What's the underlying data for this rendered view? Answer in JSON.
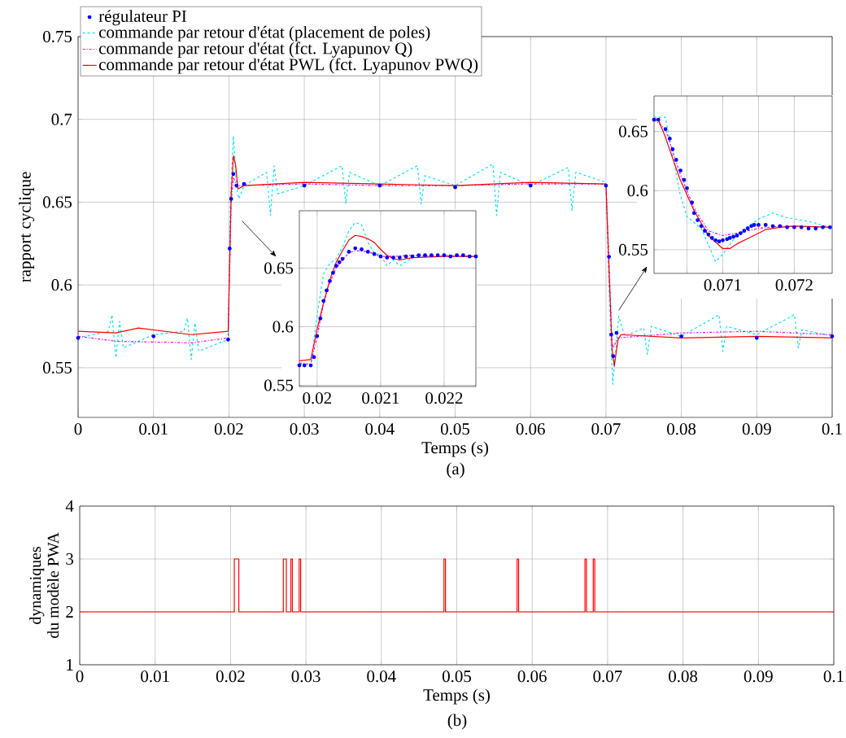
{
  "chart_data": [
    {
      "type": "line",
      "xlabel": "Temps (s)",
      "ylabel": "rapport cyclique",
      "annotations": [
        "(a)"
      ],
      "xlim": [
        0,
        0.1
      ],
      "ylim": [
        0.52,
        0.75
      ],
      "xticks": [
        0,
        0.01,
        0.02,
        0.03,
        0.04,
        0.05,
        0.06,
        0.07,
        0.08,
        0.09,
        0.1
      ],
      "yticks": [
        0.55,
        0.6,
        0.65,
        0.7,
        0.75
      ],
      "grid": true,
      "legend": "top left",
      "series": [
        {
          "name": "régulateur PI",
          "type": "scatter",
          "marker": "circle",
          "color": "#0000ff",
          "x": [
            0,
            0.01,
            0.0199,
            0.0201,
            0.0203,
            0.0206,
            0.021,
            0.022,
            0.03,
            0.04,
            0.05,
            0.06,
            0.07,
            0.0704,
            0.0707,
            0.07095,
            0.0714,
            0.08,
            0.09,
            0.1
          ],
          "values": [
            0.568,
            0.569,
            0.567,
            0.622,
            0.652,
            0.667,
            0.66,
            0.661,
            0.66,
            0.66,
            0.659,
            0.66,
            0.66,
            0.617,
            0.57,
            0.557,
            0.571,
            0.569,
            0.568,
            0.569
          ]
        },
        {
          "name": "commande par retour d'état (placement de poles)",
          "type": "line",
          "marker": "none",
          "line_style": "dashed",
          "color": "#00e5ee",
          "x": [
            0,
            0.004,
            0.0045,
            0.005,
            0.0055,
            0.006,
            0.01,
            0.014,
            0.0145,
            0.015,
            0.0155,
            0.016,
            0.0199,
            0.0202,
            0.0206,
            0.021,
            0.0213,
            0.022,
            0.025,
            0.0255,
            0.026,
            0.0265,
            0.03,
            0.035,
            0.0355,
            0.036,
            0.04,
            0.045,
            0.0455,
            0.046,
            0.05,
            0.055,
            0.0555,
            0.056,
            0.06,
            0.065,
            0.0655,
            0.066,
            0.07,
            0.0704,
            0.0709,
            0.0717,
            0.0725,
            0.075,
            0.0755,
            0.076,
            0.08,
            0.085,
            0.0855,
            0.086,
            0.09,
            0.095,
            0.0955,
            0.096,
            0.1
          ],
          "values": [
            0.568,
            0.572,
            0.582,
            0.556,
            0.578,
            0.562,
            0.57,
            0.572,
            0.58,
            0.555,
            0.577,
            0.56,
            0.567,
            0.652,
            0.69,
            0.66,
            0.652,
            0.66,
            0.668,
            0.642,
            0.672,
            0.655,
            0.66,
            0.672,
            0.649,
            0.668,
            0.66,
            0.672,
            0.649,
            0.666,
            0.66,
            0.673,
            0.642,
            0.668,
            0.66,
            0.671,
            0.645,
            0.668,
            0.662,
            0.598,
            0.54,
            0.581,
            0.569,
            0.574,
            0.558,
            0.575,
            0.569,
            0.582,
            0.56,
            0.575,
            0.57,
            0.582,
            0.562,
            0.573,
            0.569
          ]
        },
        {
          "name": "commande par retour d'état (fct. Lyapunov Q)",
          "type": "line",
          "marker": "none",
          "line_style": "dashdot",
          "color": "#ff00ff",
          "x": [
            0,
            0.005,
            0.015,
            0.0199,
            0.0203,
            0.0206,
            0.021,
            0.03,
            0.04,
            0.05,
            0.06,
            0.07,
            0.0704,
            0.0708,
            0.071,
            0.0715,
            0.08,
            0.09,
            0.1
          ],
          "values": [
            0.569,
            0.566,
            0.565,
            0.568,
            0.65,
            0.665,
            0.66,
            0.661,
            0.66,
            0.66,
            0.661,
            0.661,
            0.615,
            0.566,
            0.562,
            0.568,
            0.571,
            0.572,
            0.57
          ]
        },
        {
          "name": "commande par retour d'état PWL (fct. Lyapunov PWQ)",
          "type": "line",
          "marker": "none",
          "line_style": "solid",
          "color": "#ff0000",
          "x": [
            0,
            0.005,
            0.008,
            0.015,
            0.0199,
            0.0203,
            0.0206,
            0.0209,
            0.0212,
            0.022,
            0.03,
            0.04,
            0.05,
            0.06,
            0.07,
            0.0704,
            0.0708,
            0.0711,
            0.0716,
            0.072,
            0.08,
            0.09,
            0.1
          ],
          "values": [
            0.572,
            0.571,
            0.574,
            0.57,
            0.572,
            0.655,
            0.678,
            0.672,
            0.658,
            0.66,
            0.662,
            0.661,
            0.66,
            0.662,
            0.661,
            0.61,
            0.562,
            0.551,
            0.567,
            0.57,
            0.568,
            0.569,
            0.568
          ]
        }
      ]
    },
    {
      "type": "line",
      "xlim": [
        0.01972,
        0.0225
      ],
      "ylim": [
        0.549,
        0.699
      ],
      "xticks": [
        0.02,
        0.021,
        0.022
      ],
      "yticks": [
        0.55,
        0.6,
        0.65
      ],
      "grid": true,
      "series": [
        {
          "type": "scatter",
          "marker": "circle",
          "color": "#0000ff",
          "x": [
            0.01972,
            0.0198,
            0.0199,
            0.01995,
            0.02,
            0.02005,
            0.0201,
            0.02015,
            0.0202,
            0.02025,
            0.0203,
            0.02035,
            0.0204,
            0.0205,
            0.0206,
            0.0207,
            0.0208,
            0.0209,
            0.021,
            0.0211,
            0.0212,
            0.0213,
            0.0214,
            0.0215,
            0.0216,
            0.0217,
            0.0218,
            0.0219,
            0.022,
            0.0221,
            0.0222,
            0.0223,
            0.0224,
            0.0225
          ],
          "values": [
            0.567,
            0.567,
            0.567,
            0.574,
            0.592,
            0.607,
            0.622,
            0.631,
            0.639,
            0.646,
            0.652,
            0.655,
            0.658,
            0.664,
            0.667,
            0.666,
            0.664,
            0.662,
            0.66,
            0.659,
            0.659,
            0.659,
            0.66,
            0.66,
            0.661,
            0.661,
            0.661,
            0.661,
            0.661,
            0.66,
            0.661,
            0.661,
            0.66,
            0.66
          ]
        },
        {
          "type": "line",
          "marker": "none",
          "line_style": "dashed",
          "color": "#00e5ee",
          "x": [
            0.01972,
            0.0199,
            0.02,
            0.0201,
            0.0202,
            0.0203,
            0.0204,
            0.0205,
            0.0206,
            0.0207,
            0.0208,
            0.0209,
            0.021,
            0.0211,
            0.0212,
            0.0213,
            0.0215,
            0.022,
            0.0225
          ],
          "values": [
            0.568,
            0.568,
            0.61,
            0.645,
            0.654,
            0.658,
            0.668,
            0.682,
            0.689,
            0.687,
            0.672,
            0.663,
            0.661,
            0.652,
            0.657,
            0.652,
            0.659,
            0.661,
            0.66
          ]
        },
        {
          "type": "line",
          "marker": "none",
          "line_style": "dashdot",
          "color": "#ff00ff",
          "x": [
            0.01972,
            0.0199,
            0.02,
            0.0201,
            0.0202,
            0.0203,
            0.0204,
            0.0205,
            0.0206,
            0.0208,
            0.021,
            0.0212,
            0.0215,
            0.022,
            0.0225
          ],
          "values": [
            0.569,
            0.568,
            0.592,
            0.62,
            0.638,
            0.65,
            0.657,
            0.663,
            0.665,
            0.664,
            0.66,
            0.66,
            0.661,
            0.66,
            0.66
          ]
        },
        {
          "type": "line",
          "marker": "none",
          "line_style": "solid",
          "color": "#ff0000",
          "x": [
            0.01972,
            0.0199,
            0.02,
            0.0201,
            0.0202,
            0.0203,
            0.0204,
            0.0205,
            0.0206,
            0.0207,
            0.0208,
            0.0209,
            0.021,
            0.0211,
            0.0212,
            0.0213,
            0.0215,
            0.022,
            0.0225
          ],
          "values": [
            0.571,
            0.572,
            0.598,
            0.62,
            0.64,
            0.655,
            0.665,
            0.674,
            0.678,
            0.677,
            0.675,
            0.672,
            0.666,
            0.661,
            0.658,
            0.657,
            0.659,
            0.66,
            0.66
          ]
        }
      ]
    },
    {
      "type": "line",
      "xlim": [
        0.07004,
        0.07253
      ],
      "ylim": [
        0.53,
        0.68
      ],
      "xticks": [
        {
          "value": 0.0705,
          "label": null
        },
        0.071,
        {
          "value": 0.0715,
          "label": null
        },
        0.072
      ],
      "yticks": [
        0.55,
        0.6,
        0.65
      ],
      "grid": true,
      "series": [
        {
          "type": "scatter",
          "marker": "circle",
          "color": "#0000ff",
          "x": [
            0.07004,
            0.0701,
            0.0702,
            0.07026,
            0.0703,
            0.07035,
            0.07041,
            0.07046,
            0.0705,
            0.07057,
            0.0706,
            0.07065,
            0.0707,
            0.07075,
            0.0708,
            0.07085,
            0.0709,
            0.07095,
            0.071,
            0.07106,
            0.0711,
            0.07115,
            0.0712,
            0.07125,
            0.0713,
            0.07135,
            0.0714,
            0.07144,
            0.0715,
            0.0716,
            0.0717,
            0.0718,
            0.0719,
            0.072,
            0.0721,
            0.0722,
            0.0723,
            0.0724,
            0.0725
          ],
          "values": [
            0.66,
            0.66,
            0.652,
            0.644,
            0.635,
            0.626,
            0.617,
            0.609,
            0.602,
            0.59,
            0.581,
            0.575,
            0.57,
            0.566,
            0.563,
            0.56,
            0.558,
            0.557,
            0.558,
            0.559,
            0.56,
            0.561,
            0.562,
            0.564,
            0.566,
            0.568,
            0.57,
            0.571,
            0.571,
            0.571,
            0.57,
            0.57,
            0.569,
            0.569,
            0.569,
            0.568,
            0.568,
            0.569,
            0.569
          ]
        },
        {
          "type": "line",
          "marker": "none",
          "line_style": "dashed",
          "color": "#00e5ee",
          "x": [
            0.07004,
            0.0702,
            0.0704,
            0.0705,
            0.0707,
            0.0709,
            0.071,
            0.0712,
            0.0715,
            0.0717,
            0.0719,
            0.0722,
            0.0725
          ],
          "values": [
            0.662,
            0.662,
            0.598,
            0.578,
            0.568,
            0.54,
            0.546,
            0.563,
            0.576,
            0.581,
            0.577,
            0.574,
            0.569
          ]
        },
        {
          "type": "line",
          "marker": "none",
          "line_style": "dashdot",
          "color": "#ff00ff",
          "x": [
            0.07004,
            0.0702,
            0.0704,
            0.0706,
            0.0708,
            0.071,
            0.0712,
            0.0715,
            0.0718,
            0.0725
          ],
          "values": [
            0.66,
            0.652,
            0.615,
            0.585,
            0.566,
            0.562,
            0.564,
            0.568,
            0.57,
            0.569
          ]
        },
        {
          "type": "line",
          "marker": "none",
          "line_style": "solid",
          "color": "#ff0000",
          "x": [
            0.07004,
            0.0701,
            0.0702,
            0.0704,
            0.0706,
            0.0708,
            0.071,
            0.0711,
            0.0712,
            0.0714,
            0.0716,
            0.0718,
            0.072,
            0.0725
          ],
          "values": [
            0.66,
            0.66,
            0.645,
            0.61,
            0.583,
            0.562,
            0.551,
            0.551,
            0.555,
            0.561,
            0.567,
            0.569,
            0.57,
            0.569
          ]
        }
      ]
    },
    {
      "type": "step",
      "xlabel": "Temps (s)",
      "ylabel": "dynamiques du modèle PWA",
      "annotations": [
        "(b)"
      ],
      "xlim": [
        0,
        0.1
      ],
      "ylim": [
        1,
        4
      ],
      "xticks": [
        0,
        0.01,
        0.02,
        0.03,
        0.04,
        0.05,
        0.06,
        0.07,
        0.08,
        0.09,
        0.1
      ],
      "yticks": [
        1,
        2,
        3,
        4
      ],
      "grid": true,
      "color": "#ff0000",
      "x": [
        0,
        0.0205,
        0.0211,
        0.027,
        0.0274,
        0.028,
        0.0282,
        0.0291,
        0.0293,
        0.0483,
        0.0485,
        0.058,
        0.0582,
        0.067,
        0.0672,
        0.0681,
        0.0683,
        0.1
      ],
      "values": [
        2,
        3,
        2,
        3,
        2,
        3,
        2,
        3,
        2,
        3,
        2,
        3,
        2,
        3,
        2,
        3,
        2,
        2
      ]
    }
  ]
}
